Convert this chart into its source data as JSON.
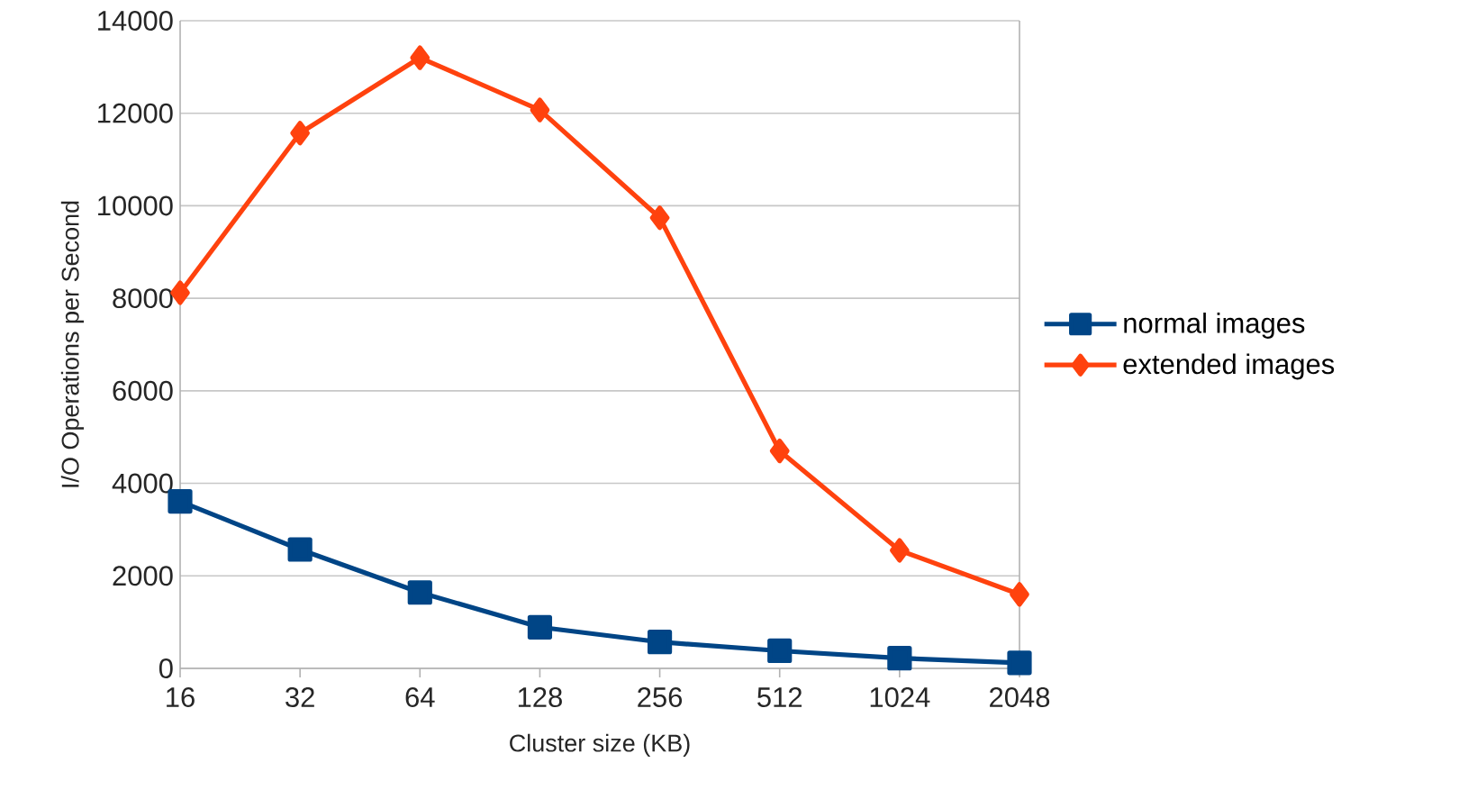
{
  "chart_data": {
    "type": "line",
    "xlabel": "Cluster size (KB)",
    "ylabel": "I/O Operations per Second",
    "categories": [
      "16",
      "32",
      "64",
      "128",
      "256",
      "512",
      "1024",
      "2048"
    ],
    "series": [
      {
        "name": "normal images",
        "color": "#004586",
        "marker": "square",
        "values": [
          3610,
          2570,
          1640,
          890,
          570,
          380,
          220,
          120
        ]
      },
      {
        "name": "extended images",
        "color": "#ff420e",
        "marker": "diamond",
        "values": [
          8120,
          11570,
          13200,
          12070,
          9740,
          4700,
          2550,
          1600
        ]
      }
    ],
    "ylim": [
      0,
      14000
    ],
    "yticks": [
      0,
      2000,
      4000,
      6000,
      8000,
      10000,
      12000,
      14000
    ],
    "grid": "y",
    "legend": "right"
  }
}
